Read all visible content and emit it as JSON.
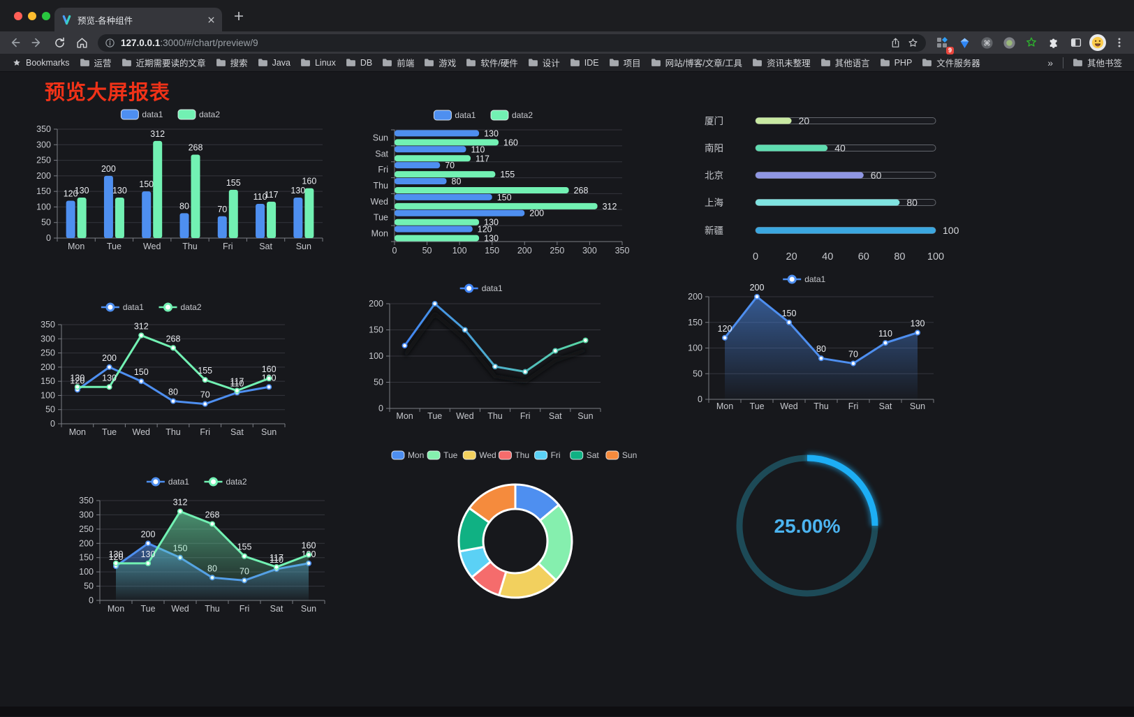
{
  "browser": {
    "tab": {
      "title": "预览-各种组件"
    },
    "url": {
      "host": "127.0.0.1",
      "rest": ":3000/#/chart/preview/9"
    },
    "extension_badge": "9",
    "bookmarks_label": "Bookmarks",
    "bookmarks": [
      "运营",
      "近期需要读的文章",
      "搜索",
      "Java",
      "Linux",
      "DB",
      "前端",
      "游戏",
      "软件/硬件",
      "设计",
      "IDE",
      "项目",
      "网站/博客/文章/工具",
      "资讯未整理",
      "其他语言",
      "PHP",
      "文件服务器"
    ],
    "bookmarks_overflow": "»",
    "other_bookmarks": "其他书签"
  },
  "page": {
    "title": "预览大屏报表",
    "title_color": "#f03218"
  },
  "chart_data": [
    {
      "id": "bar-vertical",
      "type": "bar",
      "legend_position": "top",
      "grid": true,
      "categories": [
        "Mon",
        "Tue",
        "Wed",
        "Thu",
        "Fri",
        "Sat",
        "Sun"
      ],
      "series": [
        {
          "name": "data1",
          "color": "#4E8FF0",
          "values": [
            120,
            200,
            150,
            80,
            70,
            110,
            130
          ]
        },
        {
          "name": "data2",
          "color": "#72F1B3",
          "values": [
            130,
            130,
            312,
            268,
            155,
            117,
            160
          ]
        }
      ],
      "ylim": [
        0,
        350
      ],
      "ytick_step": 50,
      "show_labels": true
    },
    {
      "id": "bar-horizontal",
      "type": "bar",
      "orientation": "horizontal",
      "legend_position": "top",
      "categories": [
        "Mon",
        "Tue",
        "Wed",
        "Thu",
        "Fri",
        "Sat",
        "Sun"
      ],
      "series": [
        {
          "name": "data1",
          "color": "#4E8FF0",
          "values": [
            120,
            200,
            150,
            80,
            70,
            110,
            130
          ]
        },
        {
          "name": "data2",
          "color": "#72F1B3",
          "values": [
            130,
            130,
            312,
            268,
            155,
            117,
            160
          ]
        }
      ],
      "xlim": [
        0,
        350
      ],
      "xtick_step": 50,
      "show_labels": true
    },
    {
      "id": "city-progress",
      "type": "bar",
      "orientation": "progress",
      "categories": [
        "厦门",
        "南阳",
        "北京",
        "上海",
        "新疆"
      ],
      "values": [
        20,
        40,
        60,
        80,
        100
      ],
      "colors": [
        "#C9E9A2",
        "#5FDCB0",
        "#8F96E3",
        "#7FE3E0",
        "#3BA7E0"
      ],
      "xlim": [
        0,
        100
      ],
      "xticks": [
        0,
        20,
        40,
        60,
        80,
        100
      ],
      "show_labels": true
    },
    {
      "id": "line-two-series",
      "type": "line",
      "legend_position": "top",
      "grid": true,
      "categories": [
        "Mon",
        "Tue",
        "Wed",
        "Thu",
        "Fri",
        "Sat",
        "Sun"
      ],
      "series": [
        {
          "name": "data1",
          "color": "#4E8FF0",
          "values": [
            120,
            200,
            150,
            80,
            70,
            110,
            130
          ]
        },
        {
          "name": "data2",
          "color": "#72F1B3",
          "values": [
            130,
            130,
            312,
            268,
            155,
            117,
            160
          ]
        }
      ],
      "ylim": [
        0,
        350
      ],
      "ytick_step": 50,
      "show_labels": true
    },
    {
      "id": "line-gradient",
      "type": "line",
      "legend_position": "top",
      "grid": true,
      "shadow": true,
      "categories": [
        "Mon",
        "Tue",
        "Wed",
        "Thu",
        "Fri",
        "Sat",
        "Sun"
      ],
      "series": [
        {
          "name": "data1",
          "color_start": "#4285F4",
          "color_end": "#58D8A3",
          "values": [
            120,
            200,
            150,
            80,
            70,
            110,
            130
          ]
        }
      ],
      "ylim": [
        0,
        200
      ],
      "ytick_step": 50,
      "show_labels": false
    },
    {
      "id": "area-single",
      "type": "area",
      "legend_position": "top",
      "grid": true,
      "categories": [
        "Mon",
        "Tue",
        "Wed",
        "Thu",
        "Fri",
        "Sat",
        "Sun"
      ],
      "series": [
        {
          "name": "data1",
          "color": "#4E8FF0",
          "values": [
            120,
            200,
            150,
            80,
            70,
            110,
            130
          ]
        }
      ],
      "ylim": [
        0,
        200
      ],
      "ytick_step": 50,
      "show_labels": true
    },
    {
      "id": "area-two-series",
      "type": "area",
      "legend_position": "top",
      "grid": true,
      "categories": [
        "Mon",
        "Tue",
        "Wed",
        "Thu",
        "Fri",
        "Sat",
        "Sun"
      ],
      "series": [
        {
          "name": "data1",
          "color": "#4E8FF0",
          "values": [
            120,
            200,
            150,
            80,
            70,
            110,
            130
          ]
        },
        {
          "name": "data2",
          "color": "#72F1B3",
          "values": [
            130,
            130,
            312,
            268,
            155,
            117,
            160
          ]
        }
      ],
      "ylim": [
        0,
        350
      ],
      "ytick_step": 50,
      "show_labels": true
    },
    {
      "id": "donut",
      "type": "pie",
      "legend_position": "top",
      "inner_radius_ratio": 0.56,
      "categories": [
        "Mon",
        "Tue",
        "Wed",
        "Thu",
        "Fri",
        "Sat",
        "Sun"
      ],
      "values": [
        120,
        200,
        150,
        80,
        70,
        110,
        130
      ],
      "colors": [
        "#4E8FF0",
        "#85EFAE",
        "#F2D05E",
        "#F56C6C",
        "#5BD1F5",
        "#10B183",
        "#F58B3D"
      ]
    },
    {
      "id": "gauge",
      "type": "gauge",
      "value": 25,
      "max": 100,
      "label": "25.00%",
      "color": "#1DAEF5",
      "track_color": "#1D4A57",
      "text_color": "#4CB4F0"
    }
  ]
}
